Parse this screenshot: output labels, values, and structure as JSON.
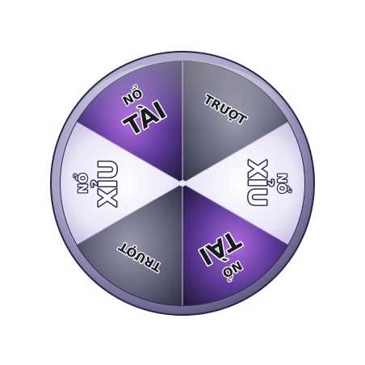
{
  "wheel": {
    "segments": [
      {
        "id": "no-tai-top",
        "small_label": "NỔ",
        "big_label": "TÀI",
        "theme": "purple-dark"
      },
      {
        "id": "truot-top-right",
        "small_label": "",
        "big_label": "TRƯỢT",
        "theme": "slate"
      },
      {
        "id": "no-xiu-right",
        "small_label": "NỔ",
        "big_label": "XỈU",
        "theme": "white"
      },
      {
        "id": "no-tai-bottom",
        "small_label": "NỔ",
        "big_label": "TÀI",
        "theme": "purple-dark"
      },
      {
        "id": "truot-bottom-left",
        "small_label": "",
        "big_label": "TRƯỢT",
        "theme": "slate"
      },
      {
        "id": "no-xiu-left",
        "small_label": "NỔ",
        "big_label": "XỈU",
        "theme": "white"
      }
    ]
  },
  "colors": {
    "rim_outer": "#b9b6d4",
    "rim_inner": "#3b3467",
    "purple_light": "#8a5cc4",
    "purple_dark": "#2d2150",
    "slate_light": "#8a8a9c",
    "slate_dark": "#3d3d4f",
    "white_light": "#ffffff",
    "white_dark": "#c9c2e3"
  }
}
